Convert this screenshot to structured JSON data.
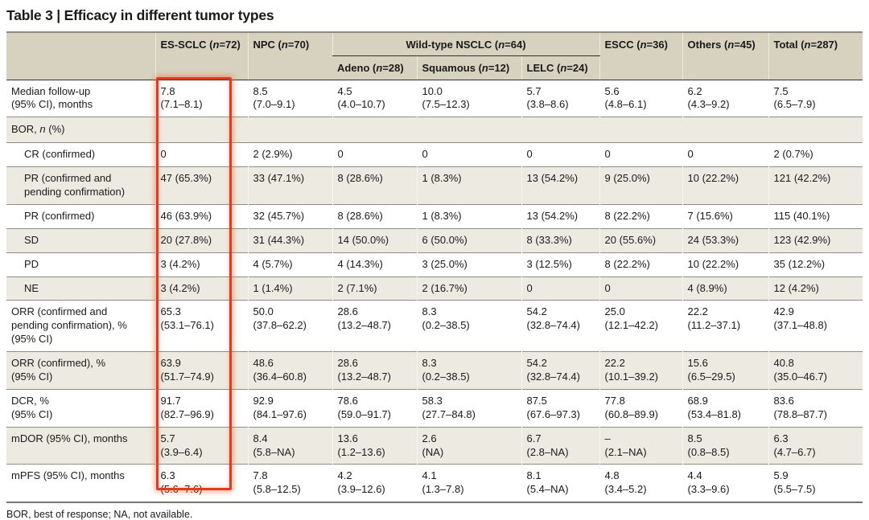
{
  "title": "Table 3 | Efficacy in different tumor types",
  "footnote": "BOR, best of response; NA, not available.",
  "colors": {
    "accent_red": "#e03a22",
    "header_bg": "#d6d2bf",
    "row_shade_bg": "#edebe1",
    "rule_dark": "#2f2f2b",
    "rule_gray": "#8f8e85",
    "text": "#1a1a1a"
  },
  "annotation": {
    "type": "red-highlight-box",
    "target_column": "ES-SCLC (n=72)"
  },
  "table": {
    "header": {
      "top": [
        {
          "label": "",
          "rowspan": 2
        },
        {
          "label": "ES-SCLC (*n*=72)",
          "rowspan": 2
        },
        {
          "label": "NPC (*n*=70)",
          "rowspan": 2
        },
        {
          "label": "Wild-type NSCLC (*n*=64)",
          "colspan": 3,
          "group": true
        },
        {
          "label": "ESCC (*n*=36)",
          "rowspan": 2
        },
        {
          "label": "Others (*n*=45)",
          "rowspan": 2
        },
        {
          "label": "Total (*n*=287)",
          "rowspan": 2
        }
      ],
      "sub": [
        "Adeno (*n*=28)",
        "Squamous (*n*=12)",
        "LELC (*n*=24)"
      ]
    },
    "rows": [
      {
        "label": "Median follow-up\n(95% CI), months",
        "indent": false,
        "shaded": false,
        "section": false,
        "values": [
          "7.8\n(7.1–8.1)",
          "8.5\n(7.0–9.1)",
          "4.5\n(4.0–10.7)",
          "10.0\n(7.5–12.3)",
          "5.7\n(3.8–8.6)",
          "5.6\n(4.8–6.1)",
          "6.2\n(4.3–9.2)",
          "7.5\n(6.5–7.9)"
        ]
      },
      {
        "label": "BOR, *n* (%)",
        "indent": false,
        "shaded": true,
        "section": true,
        "values": []
      },
      {
        "label": "CR (confirmed)",
        "indent": true,
        "shaded": false,
        "section": false,
        "values": [
          "0",
          "2 (2.9%)",
          "0",
          "0",
          "0",
          "0",
          "0",
          "2 (0.7%)"
        ]
      },
      {
        "label": "PR (confirmed and\npending confirmation)",
        "indent": true,
        "shaded": true,
        "section": false,
        "values": [
          "47 (65.3%)",
          "33 (47.1%)",
          "8 (28.6%)",
          "1 (8.3%)",
          "13 (54.2%)",
          "9 (25.0%)",
          "10 (22.2%)",
          "121 (42.2%)"
        ]
      },
      {
        "label": "PR (confirmed)",
        "indent": true,
        "shaded": false,
        "section": false,
        "values": [
          "46 (63.9%)",
          "32 (45.7%)",
          "8 (28.6%)",
          "1 (8.3%)",
          "13 (54.2%)",
          "8 (22.2%)",
          "7 (15.6%)",
          "115 (40.1%)"
        ]
      },
      {
        "label": "SD",
        "indent": true,
        "shaded": true,
        "section": false,
        "values": [
          "20 (27.8%)",
          "31 (44.3%)",
          "14 (50.0%)",
          "6 (50.0%)",
          "8 (33.3%)",
          "20 (55.6%)",
          "24 (53.3%)",
          "123 (42.9%)"
        ]
      },
      {
        "label": "PD",
        "indent": true,
        "shaded": false,
        "section": false,
        "values": [
          "3 (4.2%)",
          "4 (5.7%)",
          "4 (14.3%)",
          "3 (25.0%)",
          "3 (12.5%)",
          "8 (22.2%)",
          "10 (22.2%)",
          "35 (12.2%)"
        ]
      },
      {
        "label": "NE",
        "indent": true,
        "shaded": true,
        "section": false,
        "values": [
          "3 (4.2%)",
          "1 (1.4%)",
          "2 (7.1%)",
          "2 (16.7%)",
          "0",
          "0",
          "4 (8.9%)",
          "12 (4.2%)"
        ]
      },
      {
        "label": "ORR (confirmed and\npending confirmation), %\n(95% CI)",
        "indent": false,
        "shaded": false,
        "section": false,
        "values": [
          "65.3\n(53.1–76.1)",
          "50.0\n(37.8–62.2)",
          "28.6\n(13.2–48.7)",
          "8.3\n(0.2–38.5)",
          "54.2\n(32.8–74.4)",
          "25.0\n(12.1–42.2)",
          "22.2\n(11.2–37.1)",
          "42.9\n(37.1–48.8)"
        ]
      },
      {
        "label": "ORR (confirmed), %\n(95% CI)",
        "indent": false,
        "shaded": true,
        "section": false,
        "values": [
          "63.9\n(51.7–74.9)",
          "48.6\n(36.4–60.8)",
          "28.6\n(13.2–48.7)",
          "8.3\n(0.2–38.5)",
          "54.2\n(32.8–74.4)",
          "22.2\n(10.1–39.2)",
          "15.6\n(6.5–29.5)",
          "40.8\n(35.0–46.7)"
        ]
      },
      {
        "label": "DCR, %\n(95% CI)",
        "indent": false,
        "shaded": false,
        "section": false,
        "values": [
          "91.7\n(82.7–96.9)",
          "92.9\n(84.1–97.6)",
          "78.6\n(59.0–91.7)",
          "58.3\n(27.7–84.8)",
          "87.5\n(67.6–97.3)",
          "77.8\n(60.8–89.9)",
          "68.9\n(53.4–81.8)",
          "83.6\n(78.8–87.7)"
        ]
      },
      {
        "label": "mDOR (95% CI), months",
        "indent": false,
        "shaded": true,
        "section": false,
        "values": [
          "5.7\n(3.9–6.4)",
          "8.4\n(5.8–NA)",
          "13.6\n(1.2–13.6)",
          "2.6\n(NA)",
          "6.7\n(2.8–NA)",
          "–\n(2.1–NA)",
          "8.5\n(0.8–8.5)",
          "6.3\n(4.7–6.7)"
        ]
      },
      {
        "label": "mPFS (95% CI), months",
        "indent": false,
        "shaded": false,
        "section": false,
        "values": [
          "6.3\n(5.6–7.6)",
          "7.8\n(5.8–12.5)",
          "4.2\n(3.9–12.6)",
          "4.1\n(1.3–7.8)",
          "8.1\n(5.4–NA)",
          "4.8\n(3.4–5.2)",
          "4.4\n(3.3–9.6)",
          "5.9\n(5.5–7.5)"
        ]
      }
    ]
  }
}
